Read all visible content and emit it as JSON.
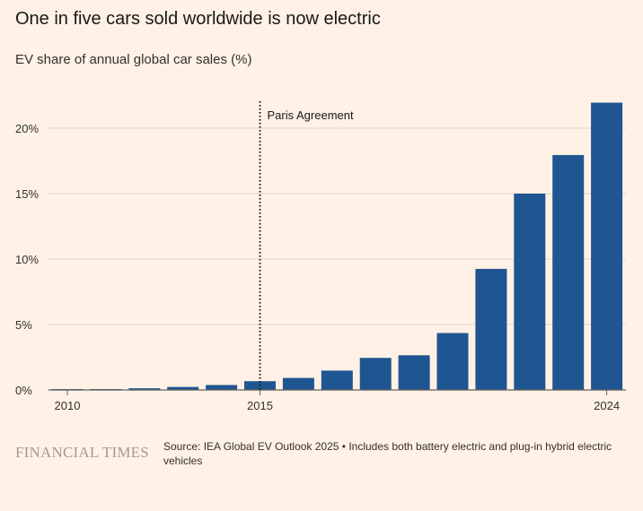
{
  "header": {
    "title": "One in five cars sold worldwide is now electric",
    "subtitle": "EV share of annual global car sales (%)"
  },
  "footer": {
    "logo": "FINANCIAL TIMES",
    "source": "Source: IEA Global EV Outlook 2025 • Includes both battery electric and plug-in hybrid electric vehicles"
  },
  "colors": {
    "background": "#fff1e5",
    "bar": "#1f5591",
    "gridline": "#e0d4c8",
    "axis": "#66605c"
  },
  "chart_data": {
    "type": "bar",
    "title": "One in five cars sold worldwide is now electric",
    "subtitle": "EV share of annual global car sales (%)",
    "xlabel": "",
    "ylabel": "",
    "categories": [
      2010,
      2011,
      2012,
      2013,
      2014,
      2015,
      2016,
      2017,
      2018,
      2019,
      2020,
      2021,
      2022,
      2023,
      2024
    ],
    "values": [
      0.01,
      0.06,
      0.13,
      0.23,
      0.38,
      0.67,
      0.92,
      1.48,
      2.45,
      2.65,
      4.35,
      9.25,
      15.0,
      17.95,
      21.95
    ],
    "ylim": [
      0,
      22
    ],
    "yticks": [
      0,
      5,
      10,
      15,
      20
    ],
    "ytick_labels": [
      "0%",
      "5%",
      "10%",
      "15%",
      "20%"
    ],
    "xtick_labels": [
      "2010",
      "2015",
      "2024"
    ],
    "xtick_years": [
      2010,
      2015,
      2024
    ],
    "grid": true,
    "annotations": [
      {
        "x": 2015,
        "text": "Paris Agreement",
        "style": "dotted-vertical-line"
      }
    ]
  }
}
